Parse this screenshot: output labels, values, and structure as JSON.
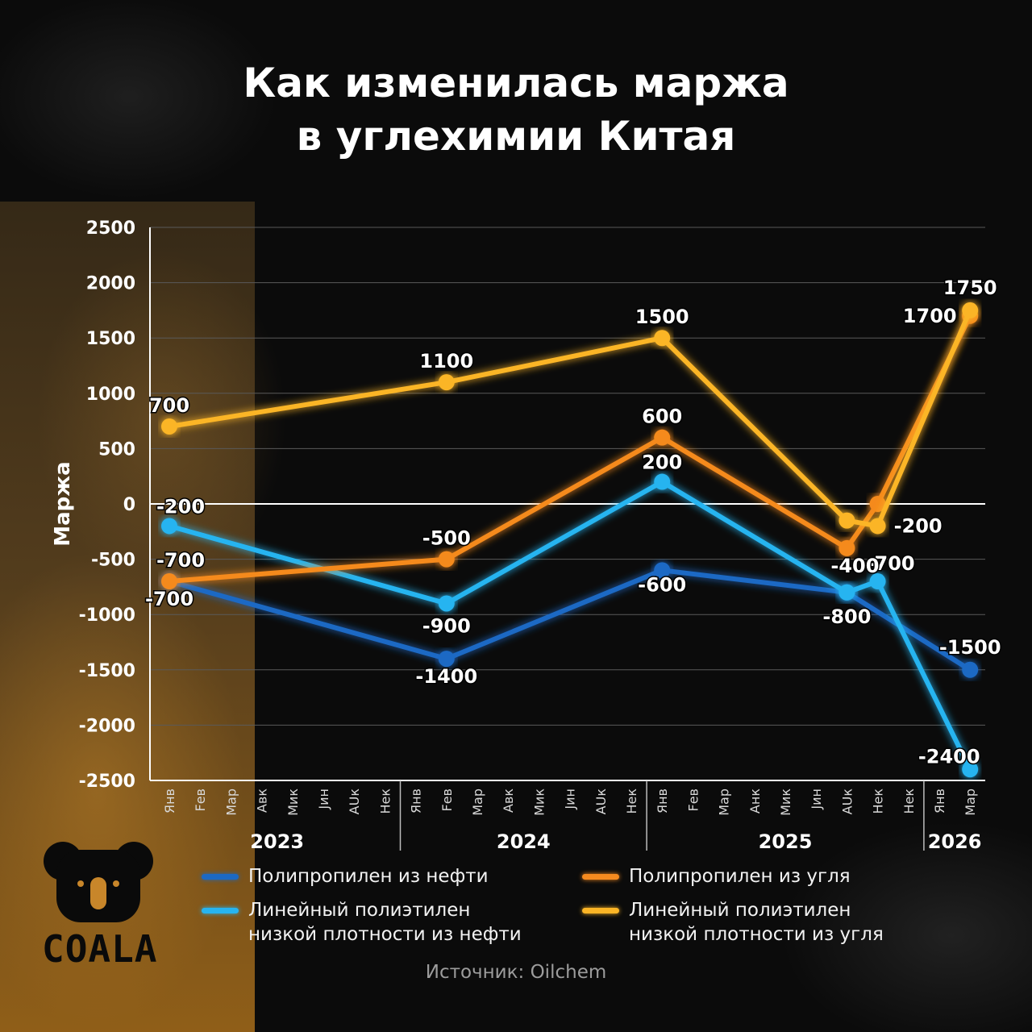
{
  "title_line1": "Как изменилась маржа",
  "title_line2": "в углехимии Китая",
  "logo_text": "COALA",
  "source": "Источник: Oilchem",
  "chart_data": {
    "type": "line",
    "title": "Как изменилась маржа в углехимии Китая",
    "ylabel": "Маржа",
    "xlabel": "",
    "ylim": [
      -2500,
      2500
    ],
    "yticks": [
      2500,
      2000,
      1500,
      1000,
      500,
      0,
      -500,
      -1000,
      -1500,
      -2000,
      -2500
    ],
    "grid": true,
    "legend_position": "bottom",
    "month_labels": [
      "Янв",
      "Fев",
      "Мар",
      "Aвк",
      "Мик",
      "Jин",
      "AUк",
      "Нек",
      "Янв",
      "Fев",
      "Мар",
      "Aвк",
      "Мик",
      "Jин",
      "AUк",
      "Нек",
      "Янв",
      "Fев",
      "Мaр",
      "Aнк",
      "Мик",
      "Jин",
      "AUк",
      "Нек",
      "Нек",
      "Янв",
      "Мар"
    ],
    "years": [
      {
        "label": "2023",
        "from": 0,
        "to": 7
      },
      {
        "label": "2024",
        "from": 8,
        "to": 15
      },
      {
        "label": "2025",
        "from": 16,
        "to": 24
      },
      {
        "label": "2026",
        "from": 25,
        "to": 26
      }
    ],
    "series": [
      {
        "name": "Полипропилен из нефти",
        "color": "#1c69c4",
        "points": [
          {
            "x": 0,
            "y": -700,
            "label": "-700"
          },
          {
            "x": 9,
            "y": -1400,
            "label": "-1400"
          },
          {
            "x": 16,
            "y": -600,
            "label": "-600"
          },
          {
            "x": 22,
            "y": -800,
            "label": "-800"
          },
          {
            "x": 26,
            "y": -1500,
            "label": "-1500"
          }
        ]
      },
      {
        "name": "Линейный полиэтилен низкой плотности из нефти",
        "color": "#27b4f0",
        "points": [
          {
            "x": 0,
            "y": -200,
            "label": "-200"
          },
          {
            "x": 9,
            "y": -900,
            "label": "-900"
          },
          {
            "x": 16,
            "y": 200,
            "label": "200"
          },
          {
            "x": 22,
            "y": -800,
            "label": ""
          },
          {
            "x": 23,
            "y": -700,
            "label": "-700"
          },
          {
            "x": 26,
            "y": -2400,
            "label": "-2400"
          }
        ]
      },
      {
        "name": "Полипропилен из угля",
        "color": "#f58a1f",
        "points": [
          {
            "x": 0,
            "y": -700,
            "label": "-700"
          },
          {
            "x": 9,
            "y": -500,
            "label": "-500"
          },
          {
            "x": 16,
            "y": 600,
            "label": "600"
          },
          {
            "x": 22,
            "y": -400,
            "label": "-400"
          },
          {
            "x": 23,
            "y": 0,
            "label": ""
          },
          {
            "x": 26,
            "y": 1700,
            "label": "1700"
          }
        ]
      },
      {
        "name": "Линейный полиэтилен низкой плотности из угля",
        "color": "#fbb526",
        "points": [
          {
            "x": 0,
            "y": 700,
            "label": "700"
          },
          {
            "x": 9,
            "y": 1100,
            "label": "1100"
          },
          {
            "x": 16,
            "y": 1500,
            "label": "1500"
          },
          {
            "x": 22,
            "y": -150,
            "label": ""
          },
          {
            "x": 23,
            "y": -200,
            "label": "-200"
          },
          {
            "x": 26,
            "y": 1750,
            "label": "1750"
          }
        ]
      }
    ]
  },
  "legend": [
    {
      "label": "Полипропилен из нефти",
      "color": "#1c69c4"
    },
    {
      "label": "Полипропилен из угля",
      "color": "#f58a1f"
    },
    {
      "label": "Линейный полиэтилен низкой плотности из нефти",
      "color": "#27b4f0"
    },
    {
      "label": "Линейный полиэтилен низкой плотности из угля",
      "color": "#fbb526"
    }
  ]
}
